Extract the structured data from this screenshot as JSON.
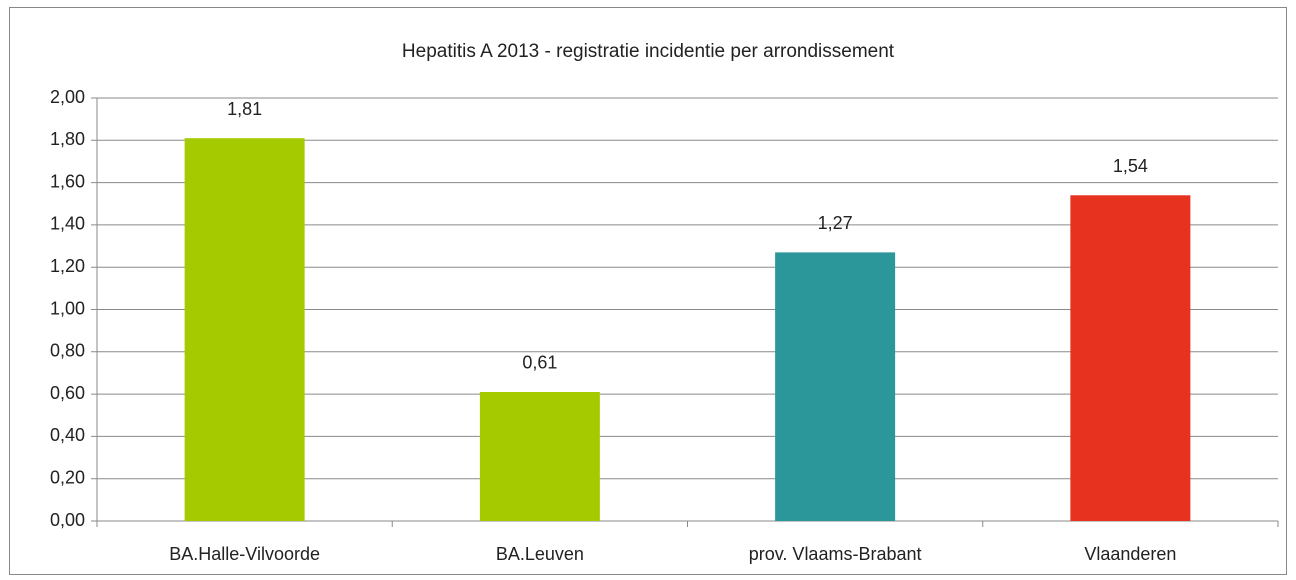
{
  "chart_data": {
    "type": "bar",
    "title": "Hepatitis A 2013 - registratie incidentie per arrondissement",
    "categories": [
      "BA.Halle-Vilvoorde",
      "BA.Leuven",
      "prov. Vlaams-Brabant",
      "Vlaanderen"
    ],
    "values": [
      1.81,
      0.61,
      1.27,
      1.54
    ],
    "value_labels": [
      "1,81",
      "0,61",
      "1,27",
      "1,54"
    ],
    "colors": [
      "#a5cb00",
      "#a5cb00",
      "#2b979b",
      "#e6321e"
    ],
    "ylim": [
      0,
      2
    ],
    "yticks": [
      {
        "value": 0,
        "label": "0,00"
      },
      {
        "value": 0.2,
        "label": "0,20"
      },
      {
        "value": 0.4,
        "label": "0,40"
      },
      {
        "value": 0.6,
        "label": "0,60"
      },
      {
        "value": 0.8,
        "label": "0,80"
      },
      {
        "value": 1,
        "label": "1,00"
      },
      {
        "value": 1.2,
        "label": "1,20"
      },
      {
        "value": 1.4,
        "label": "1,40"
      },
      {
        "value": 1.6,
        "label": "1,60"
      },
      {
        "value": 1.8,
        "label": "1,80"
      },
      {
        "value": 2,
        "label": "2,00"
      }
    ],
    "grid": true
  }
}
